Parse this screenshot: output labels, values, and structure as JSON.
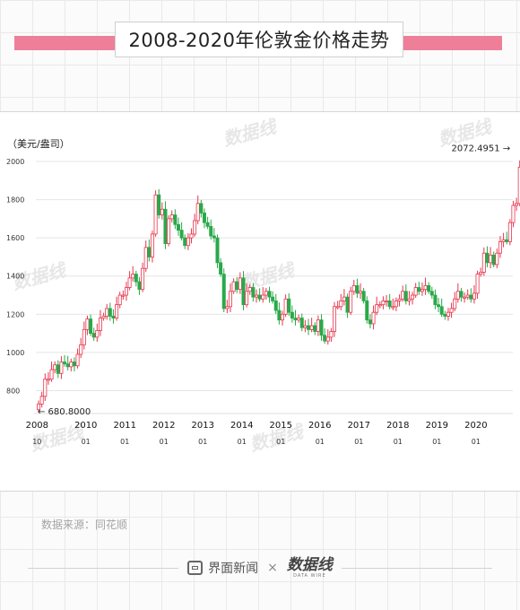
{
  "title": "2008-2020年伦敦金价格走势",
  "source_text": "数据来源：同花顺",
  "footer": {
    "brand": "界面新闻",
    "times": "×",
    "partner": "数据线",
    "partner_en": "DATA WIRE"
  },
  "watermark": "数据线",
  "colors": {
    "up": "#e8364d",
    "down": "#2aa94a",
    "title_band": "#ef7f98",
    "grid": "#e5e5e5"
  },
  "chart_data": {
    "type": "candlestick",
    "title": "2008-2020年伦敦金价格走势",
    "unit": "（美元/盎司）",
    "ylim": [
      680,
      2080
    ],
    "yticks": [
      800,
      1000,
      1200,
      1400,
      1600,
      1800,
      2000
    ],
    "xlim": [
      2008.72,
      2020.9
    ],
    "xticks": [
      {
        "x": 2008.75,
        "year": "2008",
        "month": "10"
      },
      {
        "x": 2010.0,
        "year": "2010",
        "month": "01"
      },
      {
        "x": 2011.0,
        "year": "2011",
        "month": "01"
      },
      {
        "x": 2012.0,
        "year": "2012",
        "month": "01"
      },
      {
        "x": 2013.0,
        "year": "2013",
        "month": "01"
      },
      {
        "x": 2014.0,
        "year": "2014",
        "month": "01"
      },
      {
        "x": 2015.0,
        "year": "2015",
        "month": "01"
      },
      {
        "x": 2016.0,
        "year": "2016",
        "month": "01"
      },
      {
        "x": 2017.0,
        "year": "2017",
        "month": "01"
      },
      {
        "x": 2018.0,
        "year": "2018",
        "month": "01"
      },
      {
        "x": 2019.0,
        "year": "2019",
        "month": "01"
      },
      {
        "x": 2020.0,
        "year": "2020",
        "month": "01"
      }
    ],
    "grid": true,
    "start_month": "2008-10",
    "close": [
      730,
      770,
      860,
      860,
      910,
      935,
      890,
      950,
      940,
      925,
      950,
      930,
      990,
      1040,
      1120,
      1175,
      1100,
      1080,
      1115,
      1180,
      1190,
      1230,
      1190,
      1180,
      1250,
      1300,
      1300,
      1340,
      1390,
      1410,
      1370,
      1330,
      1440,
      1550,
      1500,
      1620,
      1825,
      1720,
      1750,
      1570,
      1700,
      1720,
      1670,
      1640,
      1600,
      1560,
      1600,
      1620,
      1690,
      1780,
      1730,
      1680,
      1660,
      1610,
      1600,
      1470,
      1410,
      1230,
      1240,
      1320,
      1370,
      1330,
      1390,
      1250,
      1320,
      1340,
      1290,
      1300,
      1280,
      1300,
      1320,
      1290,
      1270,
      1220,
      1170,
      1200,
      1280,
      1210,
      1180,
      1170,
      1180,
      1130,
      1140,
      1120,
      1140,
      1110,
      1170,
      1090,
      1060,
      1080,
      1110,
      1240,
      1240,
      1270,
      1290,
      1210,
      1320,
      1350,
      1310,
      1320,
      1270,
      1170,
      1150,
      1210,
      1250,
      1250,
      1270,
      1270,
      1240,
      1240,
      1270,
      1280,
      1320,
      1270,
      1280,
      1300,
      1340,
      1320,
      1330,
      1350,
      1320,
      1300,
      1250,
      1240,
      1200,
      1190,
      1210,
      1230,
      1280,
      1320,
      1290,
      1290,
      1300,
      1280,
      1310,
      1410,
      1420,
      1520,
      1470,
      1510,
      1460,
      1520,
      1580,
      1590,
      1580,
      1680,
      1770,
      1780,
      1970,
      1970
    ]
  }
}
